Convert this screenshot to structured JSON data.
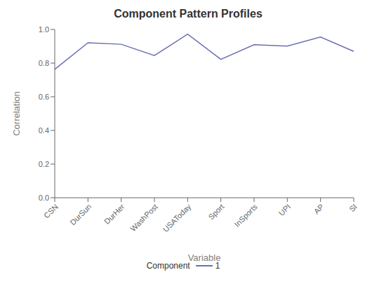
{
  "chart_data": {
    "type": "line",
    "title": "Component Pattern Profiles",
    "xlabel": "Variable",
    "ylabel": "Correlation",
    "categories": [
      "CSN",
      "DurSun",
      "DurHer",
      "WashPost",
      "USAToday",
      "Sport",
      "InSports",
      "UPI",
      "AP",
      "SI"
    ],
    "series": [
      {
        "name": "1",
        "color": "#6b6fb5",
        "values": [
          0.763,
          0.921,
          0.912,
          0.845,
          0.972,
          0.822,
          0.909,
          0.901,
          0.955,
          0.87
        ]
      }
    ],
    "ylim": [
      0.0,
      1.0
    ],
    "yticks": [
      {
        "value": 0,
        "label": "0.0"
      },
      0.2,
      0.4,
      0.6,
      0.8,
      {
        "value": 1,
        "label": "1.0"
      }
    ],
    "grid": false,
    "legend": "bottom",
    "legend_title": "Component"
  }
}
